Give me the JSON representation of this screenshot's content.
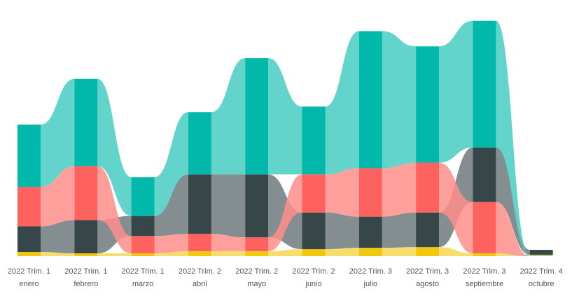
{
  "chart_data": {
    "type": "ribbon",
    "categories": [
      [
        "2022 Trim. 1",
        "enero"
      ],
      [
        "2022 Trim. 1",
        "febrero"
      ],
      [
        "2022 Trim. 1",
        "marzo"
      ],
      [
        "2022 Trim. 2",
        "abril"
      ],
      [
        "2022 Trim. 2",
        "mayo"
      ],
      [
        "2022 Trim. 2",
        "junio"
      ],
      [
        "2022 Trim. 3",
        "julio"
      ],
      [
        "2022 Trim. 3",
        "agosto"
      ],
      [
        "2022 Trim. 3",
        "septiembre"
      ],
      [
        "2022 Trim. 4",
        "octubre"
      ]
    ],
    "series": [
      {
        "color": "#F2C80F",
        "values": [
          6,
          4,
          4,
          7,
          7,
          10,
          12,
          13,
          4,
          1
        ]
      },
      {
        "color": "#8AD4EB",
        "values": [
          0,
          0,
          0,
          0,
          0,
          0,
          0,
          0,
          0,
          1
        ]
      },
      {
        "color": "#374649",
        "values": [
          37,
          48,
          29,
          86,
          91,
          53,
          45,
          50,
          79,
          7
        ]
      },
      {
        "color": "#FD625E",
        "values": [
          57,
          78,
          25,
          25,
          20,
          55,
          70,
          72,
          74,
          0
        ]
      },
      {
        "color": "#01B8AA",
        "values": [
          90,
          126,
          56,
          90,
          168,
          98,
          198,
          168,
          183,
          0
        ]
      }
    ],
    "ylim": [
      0,
      370
    ]
  }
}
